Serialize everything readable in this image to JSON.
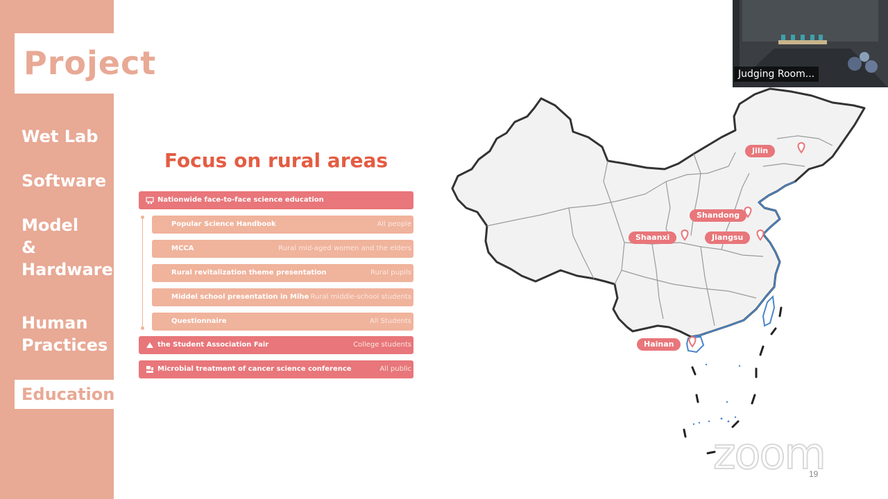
{
  "sidebar": {
    "logo": "Project",
    "items": [
      {
        "label": "Wet Lab"
      },
      {
        "label": "Software"
      },
      {
        "label_lines": [
          "Model",
          "&",
          "Hardware"
        ]
      },
      {
        "label_lines": [
          "Human",
          "Practices"
        ]
      },
      {
        "label": "Education",
        "active": true
      }
    ]
  },
  "slide": {
    "title": "Focus on rural areas",
    "rows": [
      {
        "label": "Nationwide face-to-face science education",
        "audience": "",
        "type": "main",
        "icon": "classroom-icon"
      },
      {
        "label": "Popular Science Handbook",
        "audience": "All people",
        "type": "sub"
      },
      {
        "label": "MCCA",
        "audience": "Rural mid-aged women and the elders",
        "type": "sub"
      },
      {
        "label": "Rural revitalization theme presentation",
        "audience": "Rural pupils",
        "type": "sub"
      },
      {
        "label": "Middel school presentation in Mihe",
        "audience": "Rural middle-school students",
        "type": "sub"
      },
      {
        "label": "Questionnaire",
        "audience": "All Students",
        "type": "sub"
      },
      {
        "label": "the Student Association Fair",
        "audience": "College students",
        "type": "main",
        "icon": "tent-icon"
      },
      {
        "label": "Microbial treatment of cancer science conference",
        "audience": "All public",
        "type": "main",
        "icon": "conference-icon"
      }
    ],
    "map": {
      "provinces": [
        {
          "name": "Jilin"
        },
        {
          "name": "Shandong"
        },
        {
          "name": "Shaanxi"
        },
        {
          "name": "Jiangsu"
        },
        {
          "name": "Hainan"
        }
      ],
      "colors": {
        "label_bg": "#e8767a",
        "pin": "#e8767a",
        "coast": "#4a86c8",
        "border": "#333333"
      }
    },
    "page_number": "19"
  },
  "video": {
    "caption": "Judging Room..."
  },
  "watermark": "zoom",
  "colors": {
    "sidebar": "#e8a995",
    "title": "#e35d43",
    "main_row": "#e8767a",
    "sub_row": "#f0b39c"
  }
}
